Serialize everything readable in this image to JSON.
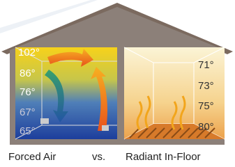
{
  "left_panel": {
    "temperatures": [
      "102°",
      "86°",
      "76°",
      "67°",
      "65°"
    ]
  },
  "right_panel": {
    "temperatures": [
      "71°",
      "73°",
      "75°",
      "80°"
    ]
  },
  "caption": {
    "left": "Forced Air",
    "middle": "vs.",
    "right": "Radiant In-Floor"
  }
}
